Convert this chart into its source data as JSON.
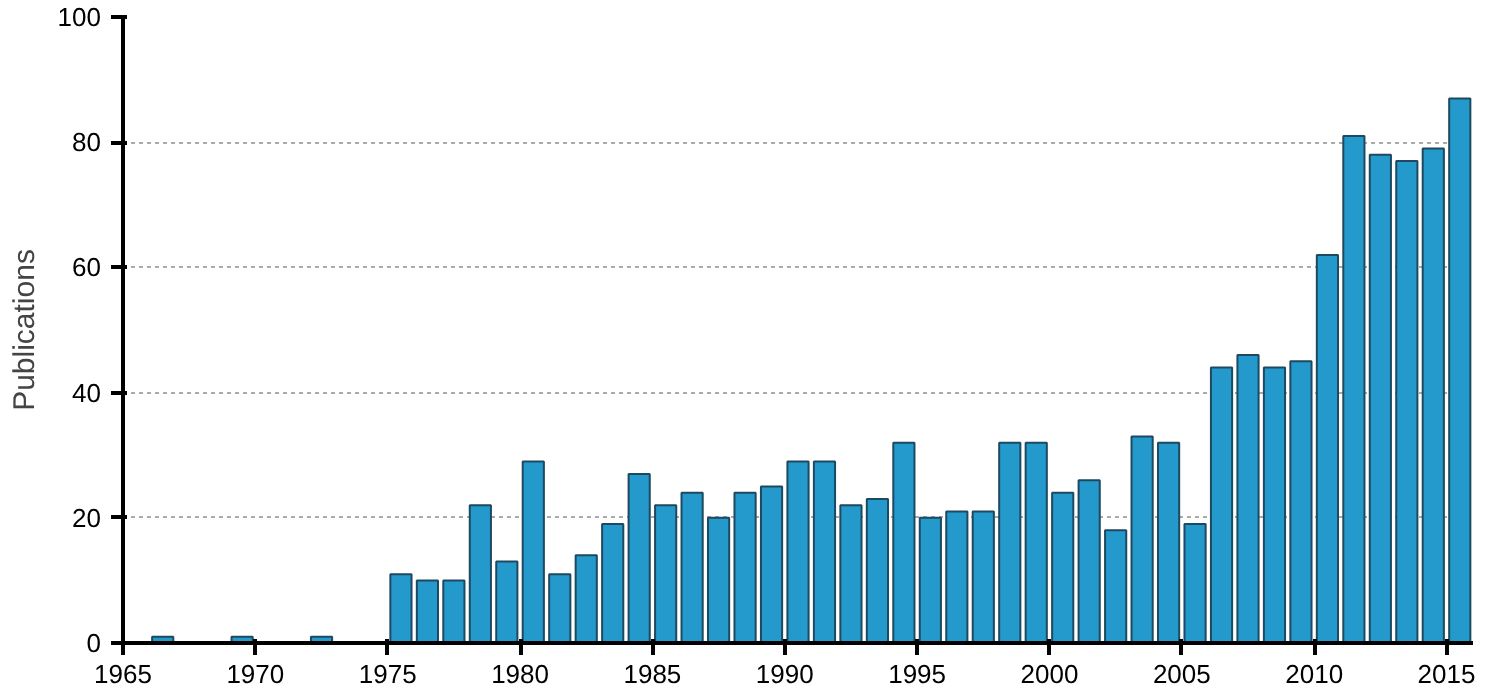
{
  "chart_data": {
    "type": "bar",
    "ylabel": "Publications",
    "color": "#2399cc",
    "x": [
      1966.5,
      1969.5,
      1972.5,
      1975.5,
      1976.5,
      1977.5,
      1978.5,
      1979.5,
      1980.5,
      1981.5,
      1982.5,
      1983.5,
      1984.5,
      1985.5,
      1986.5,
      1987.5,
      1988.5,
      1989.5,
      1990.5,
      1991.5,
      1992.5,
      1993.5,
      1994.5,
      1995.5,
      1996.5,
      1997.5,
      1998.5,
      1999.5,
      2000.5,
      2001.5,
      2002.5,
      2003.5,
      2004.5,
      2005.5,
      2006.5,
      2007.5,
      2008.5,
      2009.5,
      2010.5,
      2011.5,
      2012.5,
      2013.5,
      2014.5,
      2015.5
    ],
    "values": [
      1,
      1,
      1,
      11,
      10,
      10,
      22,
      13,
      29,
      11,
      14,
      19,
      27,
      22,
      24,
      20,
      24,
      25,
      29,
      29,
      22,
      23,
      32,
      20,
      21,
      21,
      32,
      32,
      24,
      26,
      18,
      33,
      32,
      19,
      44,
      46,
      44,
      45,
      62,
      81,
      78,
      77,
      79,
      87
    ],
    "xlim": [
      1965,
      2016
    ],
    "xticks": [
      1965,
      1970,
      1975,
      1980,
      1985,
      1990,
      1995,
      2000,
      2005,
      2010,
      2015
    ],
    "ylim": [
      0,
      100
    ],
    "yticks": [
      0,
      20,
      40,
      60,
      80,
      100
    ],
    "grid": "y"
  }
}
